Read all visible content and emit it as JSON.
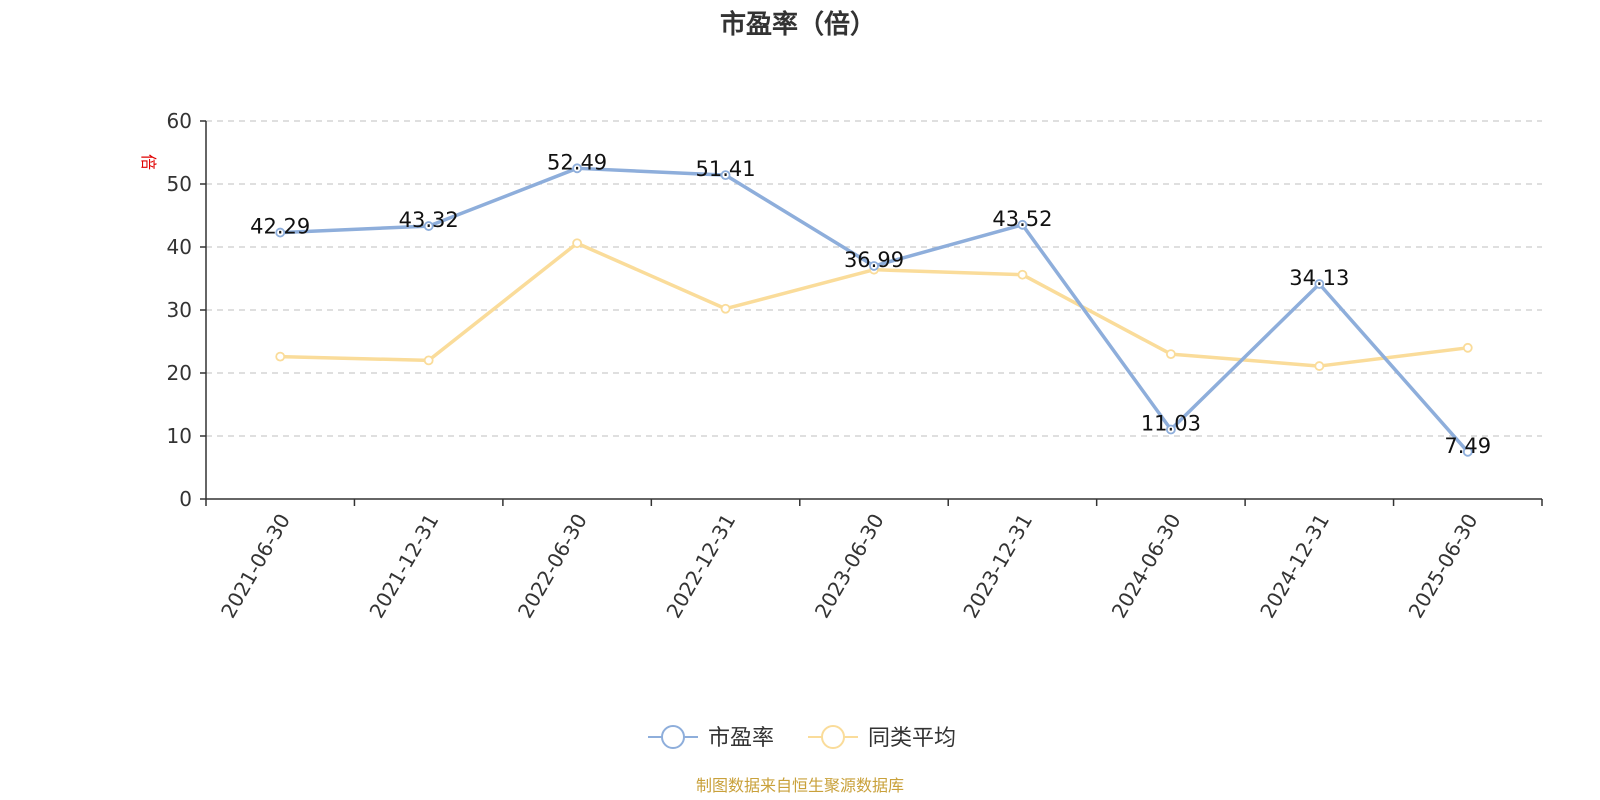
{
  "chart_data": {
    "type": "line",
    "title": "市盈率（倍）",
    "ylabel": "倍",
    "ylim": [
      0,
      60
    ],
    "yticks": [
      0,
      10,
      20,
      30,
      40,
      50,
      60
    ],
    "categories": [
      "2021-06-30",
      "2021-12-31",
      "2022-06-30",
      "2022-12-31",
      "2023-06-30",
      "2023-12-31",
      "2024-06-30",
      "2024-12-31",
      "2025-06-30"
    ],
    "series": [
      {
        "name": "市盈率",
        "color": "#8eaedb",
        "values": [
          42.29,
          43.32,
          52.49,
          51.41,
          36.99,
          43.52,
          11.03,
          34.13,
          7.49
        ],
        "labels": [
          "42.29",
          "43.32",
          "52.49",
          "51.41",
          "36.99",
          "43.52",
          "11.03",
          "34.13",
          "7.49"
        ]
      },
      {
        "name": "同类平均",
        "color": "#fadc9a",
        "values": [
          22.6,
          22.0,
          40.6,
          30.2,
          36.4,
          35.6,
          23.0,
          21.1,
          24.0
        ]
      }
    ],
    "grid": "horizontal-dashed",
    "legend_position": "bottom-center"
  },
  "source_note": "制图数据来自恒生聚源数据库"
}
